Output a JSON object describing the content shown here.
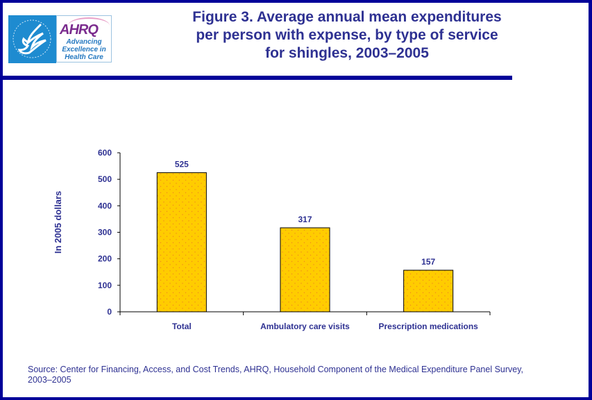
{
  "header": {
    "logo_hhs": "HHS eagle seal",
    "logo_ahrq_word": "AHRQ",
    "logo_ahrq_tagline": [
      "Advancing",
      "Excellence in",
      "Health Care"
    ]
  },
  "title_lines": [
    "Figure 3. Average annual mean expenditures",
    "per person with expense, by type of service",
    "for shingles, 2003–2005"
  ],
  "source_lines": [
    "Source: Center for Financing, Access, and Cost Trends, AHRQ, Household Component of the Medical Expenditure Panel Survey,",
    "2003–2005"
  ],
  "colors": {
    "frame": "#000099",
    "text": "#2E3192",
    "bar_fill": "#FFCC00",
    "bar_dots": "#F08A1E"
  },
  "chart_data": {
    "type": "bar",
    "title": "Figure 3. Average annual mean expenditures per person with expense, by type of service for shingles, 2003–2005",
    "xlabel": "",
    "ylabel": "In  2005 dollars",
    "categories": [
      "Total",
      "Ambulatory care visits",
      "Prescription medications"
    ],
    "values": [
      525,
      317,
      157
    ],
    "data_labels": [
      "525",
      "317",
      "157"
    ],
    "ylim": [
      0,
      600
    ],
    "yticks": [
      0,
      100,
      200,
      300,
      400,
      500,
      600
    ],
    "grid": false,
    "legend": "none"
  }
}
